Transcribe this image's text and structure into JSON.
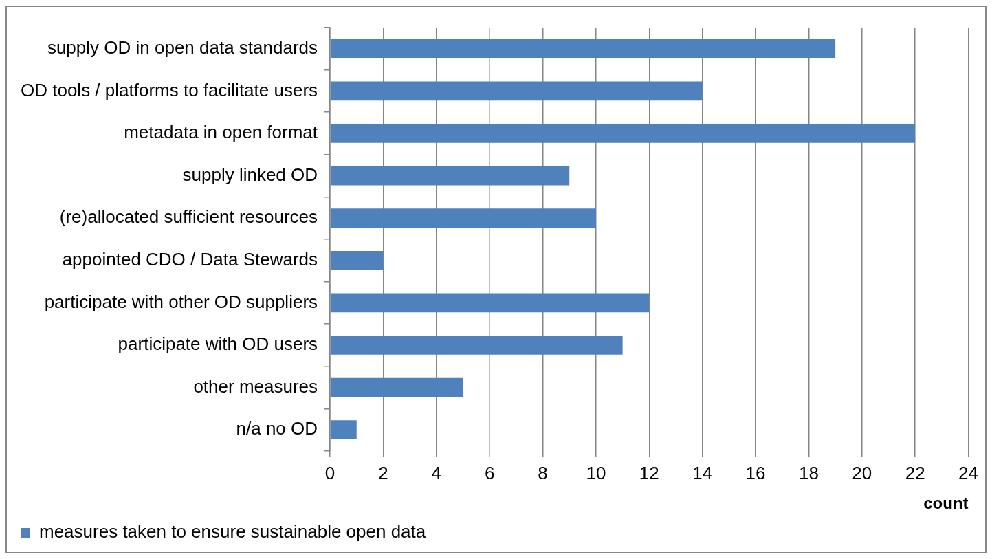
{
  "chart_data": {
    "type": "bar",
    "orientation": "horizontal",
    "xlabel": "count",
    "categories": [
      "supply OD in open data standards",
      "OD tools / platforms to facilitate users",
      "metadata in open format",
      "supply linked OD",
      "(re)allocated sufficient resources",
      "appointed CDO / Data Stewards",
      "participate with other OD suppliers",
      "participate with OD users",
      "other measures",
      "n/a no OD"
    ],
    "series": [
      {
        "name": "measures taken to ensure sustainable open data",
        "color": "#4f81bd",
        "values": [
          19,
          14,
          22,
          9,
          10,
          2,
          12,
          11,
          5,
          1
        ]
      }
    ],
    "xlim": [
      0,
      24
    ],
    "xticks": [
      0,
      2,
      4,
      6,
      8,
      10,
      12,
      14,
      16,
      18,
      20,
      22,
      24
    ],
    "grid": "x",
    "legend": "bottom left"
  }
}
